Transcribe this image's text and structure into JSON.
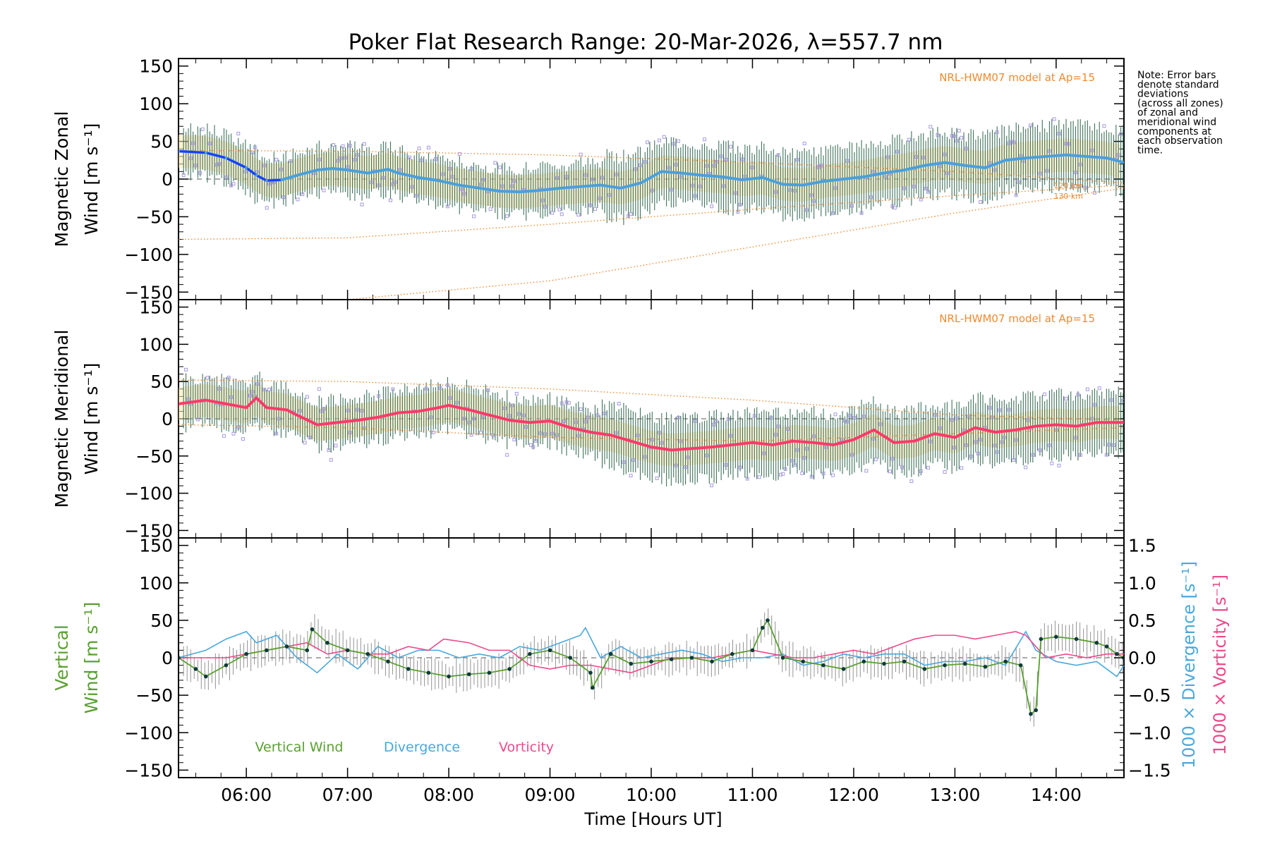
{
  "chart_data": {
    "type": "line",
    "title": "Poker Flat Research Range: 20-Mar-2026, λ=557.7 nm",
    "note": [
      "Note: Error bars",
      "denote standard",
      "deviations",
      "(across all zones)",
      "of zonal and",
      "meridional wind",
      "components at",
      "each observation",
      "time."
    ],
    "xlabel": "Time [Hours UT]",
    "x_ticks": [
      "06:00",
      "07:00",
      "08:00",
      "09:00",
      "10:00",
      "11:00",
      "12:00",
      "13:00",
      "14:00"
    ],
    "x_tick_hours": [
      6,
      7,
      8,
      9,
      10,
      11,
      12,
      13,
      14
    ],
    "xlim": [
      5.33,
      14.67
    ],
    "y_ticks": [
      "150",
      "100",
      "50",
      "0",
      "−50",
      "−100",
      "−150"
    ],
    "y_tick_values": [
      150,
      100,
      50,
      0,
      -50,
      -100,
      -150
    ],
    "colors": {
      "zonal": "#4aa0dc",
      "zonal_early": "#1a3cff",
      "meridional": "#ff3a6a",
      "model": "#f08a30",
      "scatter": "#a89ae0",
      "errorbar": "#1f5a40",
      "vertical": "#5aa030",
      "divergence": "#4aa8dc",
      "vorticity": "#ec4a8a",
      "vert_err": "#888888"
    },
    "panels": [
      {
        "name": "zonal",
        "ylabel_line1": "Magnetic Zonal",
        "ylabel_line2": "Wind [m s⁻¹]",
        "ylim": [
          -160,
          160
        ],
        "model_label": "NRL-HWM07 model at Ap=15",
        "model_alt_labels": [
          "120 km",
          "130 km"
        ],
        "series": [
          {
            "name": "Zonal wind mean",
            "x": [
              5.33,
              5.6,
              5.8,
              6.0,
              6.1,
              6.2,
              6.35,
              6.5,
              6.7,
              6.85,
              7.0,
              7.2,
              7.4,
              7.5,
              7.7,
              7.9,
              8.1,
              8.3,
              8.5,
              8.7,
              8.9,
              9.1,
              9.3,
              9.5,
              9.7,
              9.9,
              10.1,
              10.3,
              10.5,
              10.7,
              10.9,
              11.1,
              11.3,
              11.5,
              11.7,
              11.9,
              12.1,
              12.3,
              12.5,
              12.7,
              12.9,
              13.1,
              13.3,
              13.5,
              13.7,
              13.9,
              14.1,
              14.3,
              14.5,
              14.67
            ],
            "values": [
              37,
              35,
              28,
              15,
              5,
              -2,
              -1,
              5,
              12,
              14,
              12,
              8,
              13,
              8,
              2,
              -2,
              -8,
              -12,
              -16,
              -17,
              -15,
              -12,
              -10,
              -8,
              -12,
              -5,
              10,
              8,
              5,
              3,
              -1,
              2,
              -7,
              -8,
              -3,
              0,
              3,
              8,
              12,
              18,
              22,
              18,
              15,
              25,
              28,
              30,
              32,
              30,
              28,
              22
            ]
          },
          {
            "name": "Model upper",
            "x": [
              5.33,
              7,
              9,
              11,
              13,
              14.67
            ],
            "values": [
              38,
              37,
              32,
              22,
              10,
              -5
            ]
          },
          {
            "name": "Model 120 km",
            "x": [
              5.33,
              7,
              9,
              11,
              13,
              14.67
            ],
            "values": [
              -80,
              -78,
              -60,
              -40,
              -22,
              -8
            ]
          },
          {
            "name": "Model 130 km",
            "x": [
              5.33,
              7,
              9,
              11,
              13,
              14.67
            ],
            "values": [
              -162,
              -160,
              -135,
              -90,
              -45,
              -12
            ]
          }
        ]
      },
      {
        "name": "meridional",
        "ylabel_line1": "Magnetic Meridional",
        "ylabel_line2": "Wind [m s⁻¹]",
        "ylim": [
          -160,
          160
        ],
        "model_label": "NRL-HWM07 model at Ap=15",
        "series": [
          {
            "name": "Meridional wind mean",
            "x": [
              5.33,
              5.6,
              5.8,
              6.0,
              6.1,
              6.2,
              6.4,
              6.5,
              6.7,
              6.9,
              7.1,
              7.3,
              7.5,
              7.7,
              7.9,
              8.0,
              8.2,
              8.4,
              8.6,
              8.8,
              9.0,
              9.2,
              9.4,
              9.6,
              9.8,
              10.0,
              10.2,
              10.4,
              10.6,
              10.8,
              11.0,
              11.2,
              11.4,
              11.6,
              11.8,
              12.0,
              12.2,
              12.4,
              12.6,
              12.8,
              13.0,
              13.2,
              13.4,
              13.6,
              13.8,
              14.0,
              14.2,
              14.4,
              14.67
            ],
            "values": [
              20,
              25,
              20,
              15,
              28,
              15,
              12,
              5,
              -8,
              -5,
              -2,
              2,
              8,
              10,
              15,
              18,
              12,
              5,
              -2,
              -5,
              -3,
              -12,
              -18,
              -22,
              -30,
              -38,
              -42,
              -40,
              -38,
              -35,
              -32,
              -35,
              -30,
              -32,
              -35,
              -28,
              -15,
              -32,
              -30,
              -20,
              -25,
              -12,
              -18,
              -15,
              -10,
              -8,
              -10,
              -5,
              -5
            ]
          },
          {
            "name": "Model upper",
            "x": [
              5.33,
              7,
              9,
              11,
              13,
              14.67
            ],
            "values": [
              52,
              50,
              40,
              25,
              5,
              -2
            ]
          },
          {
            "name": "Model lower",
            "x": [
              5.33,
              7,
              9,
              11,
              13,
              14.67
            ],
            "values": [
              -8,
              -12,
              -25,
              -30,
              -20,
              -12
            ]
          }
        ]
      },
      {
        "name": "vertical",
        "ylabel_line1": "Vertical",
        "ylabel_line2": "Wind [m s⁻¹]",
        "ylim": [
          -160,
          160
        ],
        "right_axis_ticks": [
          "1.5",
          "1.0",
          "0.5",
          "0.0",
          "−0.5",
          "−1.0",
          "−1.5"
        ],
        "right_axis_values": [
          1.5,
          1.0,
          0.5,
          0.0,
          -0.5,
          -1.0,
          -1.5
        ],
        "right_ylim": [
          -1.6,
          1.6
        ],
        "right_label_divergence": "1000 × Divergence [s⁻¹]",
        "right_label_vorticity": "1000 × Vorticity [s⁻¹]",
        "legend": [
          "Vertical Wind",
          "Divergence",
          "Vorticity"
        ],
        "series": [
          {
            "name": "Vertical Wind",
            "x": [
              5.33,
              5.5,
              5.6,
              5.8,
              6.0,
              6.2,
              6.4,
              6.6,
              6.65,
              6.8,
              7.0,
              7.2,
              7.4,
              7.6,
              7.8,
              8.0,
              8.2,
              8.4,
              8.6,
              8.8,
              9.0,
              9.2,
              9.4,
              9.42,
              9.6,
              9.8,
              10.0,
              10.2,
              10.4,
              10.6,
              10.8,
              11.0,
              11.1,
              11.15,
              11.3,
              11.5,
              11.7,
              11.9,
              12.1,
              12.3,
              12.5,
              12.7,
              12.9,
              13.1,
              13.3,
              13.5,
              13.65,
              13.75,
              13.8,
              13.85,
              14.0,
              14.2,
              14.4,
              14.5,
              14.6,
              14.67
            ],
            "values": [
              0,
              -15,
              -25,
              -10,
              5,
              10,
              15,
              10,
              38,
              20,
              10,
              5,
              -5,
              -15,
              -20,
              -25,
              -22,
              -20,
              -15,
              5,
              10,
              0,
              -20,
              -40,
              5,
              -8,
              -5,
              -2,
              0,
              -5,
              5,
              10,
              40,
              50,
              0,
              -5,
              -10,
              -15,
              -5,
              -8,
              -5,
              -15,
              -10,
              -8,
              -12,
              -5,
              -10,
              -75,
              -70,
              25,
              28,
              25,
              20,
              15,
              5,
              0
            ]
          },
          {
            "name": "Divergence",
            "x": [
              5.33,
              5.6,
              5.8,
              6.0,
              6.1,
              6.3,
              6.5,
              6.7,
              6.9,
              7.1,
              7.3,
              7.5,
              7.7,
              7.9,
              8.1,
              8.3,
              8.5,
              8.7,
              8.9,
              9.1,
              9.3,
              9.35,
              9.5,
              9.7,
              9.9,
              10.1,
              10.3,
              10.5,
              10.7,
              10.9,
              11.1,
              11.3,
              11.5,
              11.7,
              11.9,
              12.1,
              12.3,
              12.5,
              12.7,
              12.9,
              13.1,
              13.3,
              13.5,
              13.7,
              13.8,
              14.0,
              14.2,
              14.4,
              14.6,
              14.67
            ],
            "values": [
              0,
              0.1,
              0.25,
              0.35,
              0.2,
              0.3,
              0.0,
              -0.2,
              0.05,
              -0.15,
              0.15,
              0.0,
              0.1,
              0.1,
              0.0,
              0.05,
              0.0,
              0.15,
              0.1,
              0.2,
              0.3,
              0.4,
              0.0,
              0.15,
              0.0,
              0.05,
              0.1,
              0.05,
              -0.05,
              0.0,
              0.0,
              0.05,
              -0.1,
              -0.05,
              0.05,
              0.0,
              0.05,
              0.05,
              -0.1,
              -0.05,
              -0.05,
              0.0,
              -0.1,
              0.35,
              0.1,
              -0.05,
              -0.1,
              -0.05,
              -0.25,
              -0.1
            ]
          },
          {
            "name": "Vorticity",
            "x": [
              5.33,
              5.6,
              5.8,
              6.0,
              6.2,
              6.4,
              6.6,
              6.8,
              7.0,
              7.2,
              7.4,
              7.6,
              7.8,
              7.95,
              8.2,
              8.4,
              8.6,
              8.8,
              9.0,
              9.2,
              9.4,
              9.6,
              9.8,
              10.0,
              10.2,
              10.4,
              10.6,
              10.8,
              11.0,
              11.2,
              11.4,
              11.6,
              11.8,
              12.0,
              12.2,
              12.4,
              12.6,
              12.8,
              13.0,
              13.2,
              13.4,
              13.6,
              13.7,
              13.9,
              14.1,
              14.3,
              14.5,
              14.67
            ],
            "values": [
              0,
              0.0,
              0.0,
              0.05,
              0.1,
              0.15,
              0.2,
              0.05,
              0.1,
              0.05,
              0.05,
              0.15,
              0.1,
              0.25,
              0.2,
              0.1,
              0.1,
              -0.1,
              -0.15,
              -0.1,
              -0.1,
              -0.15,
              -0.2,
              -0.1,
              0.0,
              0.0,
              0.0,
              0.05,
              0.1,
              0.05,
              0.0,
              0.0,
              0.05,
              0.1,
              0.05,
              0.15,
              0.25,
              0.3,
              0.3,
              0.25,
              0.3,
              0.35,
              0.3,
              0.0,
              0.05,
              0.0,
              0.05,
              0.05
            ]
          }
        ]
      }
    ]
  }
}
